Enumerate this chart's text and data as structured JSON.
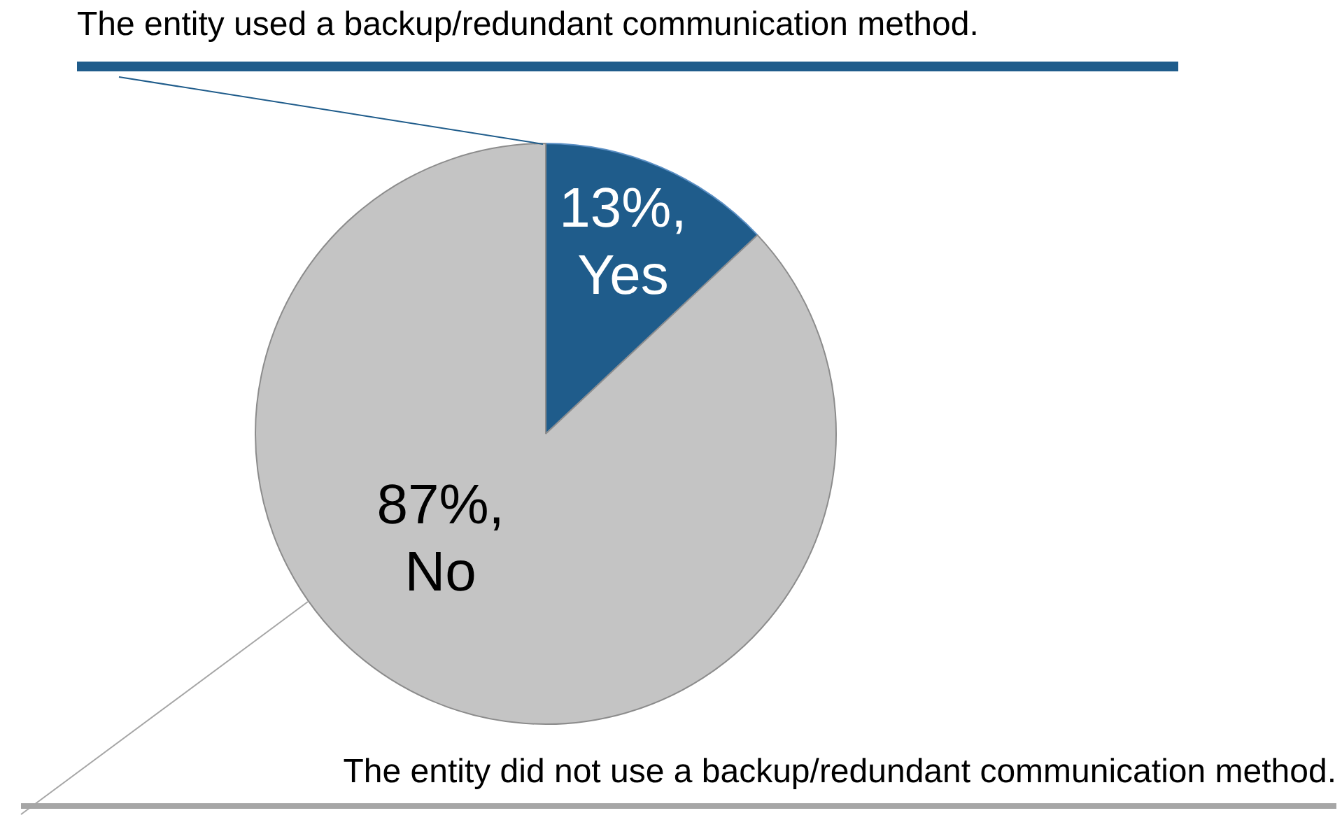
{
  "chart_data": {
    "type": "pie",
    "categories": [
      "Yes",
      "No"
    ],
    "values": [
      13,
      87
    ],
    "value_labels": [
      "13%,",
      "87%,"
    ],
    "colors": [
      "#1f5c8b",
      "#c4c4c4"
    ],
    "annotations": [
      "The entity used a backup/redundant communication method.",
      "The entity did not use a backup/redundant communication method."
    ],
    "legend": false
  }
}
